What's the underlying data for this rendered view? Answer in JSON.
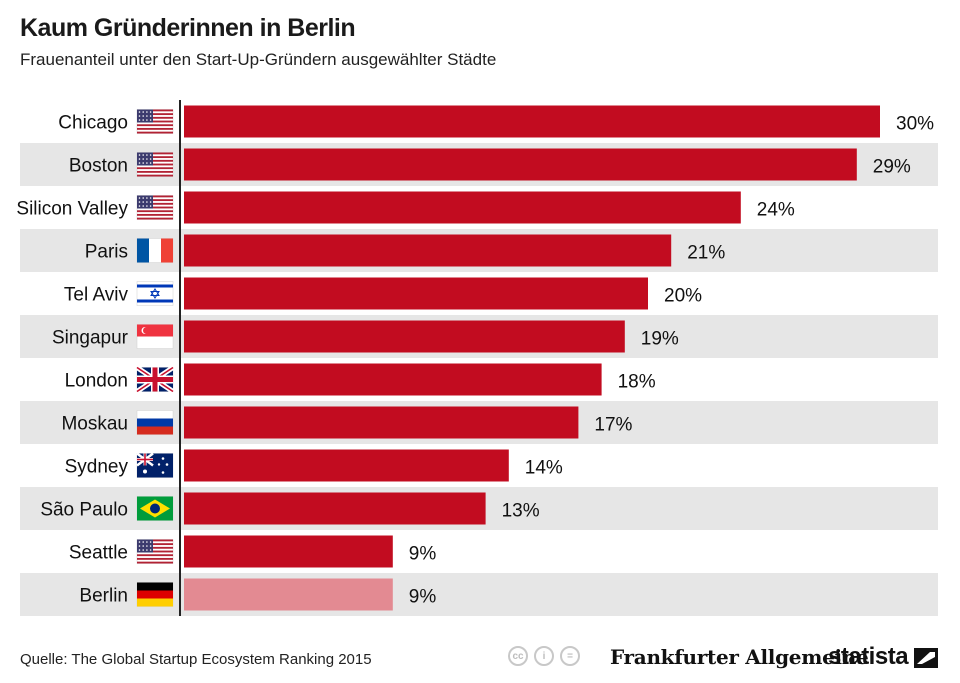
{
  "header": {
    "title": "Kaum Gründerinnen in Berlin",
    "subtitle": "Frauenanteil unter den Start-Up-Gründern ausgewählter Städte"
  },
  "footer": {
    "source": "Quelle: The Global Startup Ecosystem Ranking 2015",
    "publisher": "Frankfurter Allgemeine",
    "brand": "statista",
    "license_icons": [
      "cc-icon",
      "by-icon",
      "nd-icon"
    ]
  },
  "colors": {
    "bar": "#c20c20",
    "bar_highlight": "#e38a92",
    "row_band": "#e6e6e6"
  },
  "chart_data": {
    "type": "bar",
    "orientation": "horizontal",
    "categories": [
      "Chicago",
      "Boston",
      "Silicon Valley",
      "Paris",
      "Tel Aviv",
      "Singapur",
      "London",
      "Moskau",
      "Sydney",
      "São Paulo",
      "Seattle",
      "Berlin"
    ],
    "flags": [
      "us",
      "us",
      "us",
      "fr",
      "il",
      "sg",
      "gb",
      "ru",
      "au",
      "br",
      "us",
      "de"
    ],
    "values": [
      30,
      29,
      24,
      21,
      20,
      19,
      18,
      17,
      14,
      13,
      9,
      9
    ],
    "value_labels": [
      "30%",
      "29%",
      "24%",
      "21%",
      "20%",
      "19%",
      "18%",
      "17%",
      "14%",
      "13%",
      "9%",
      "9%"
    ],
    "highlight": "Berlin",
    "xlim": [
      0,
      30
    ],
    "grid": false,
    "legend": "none"
  }
}
